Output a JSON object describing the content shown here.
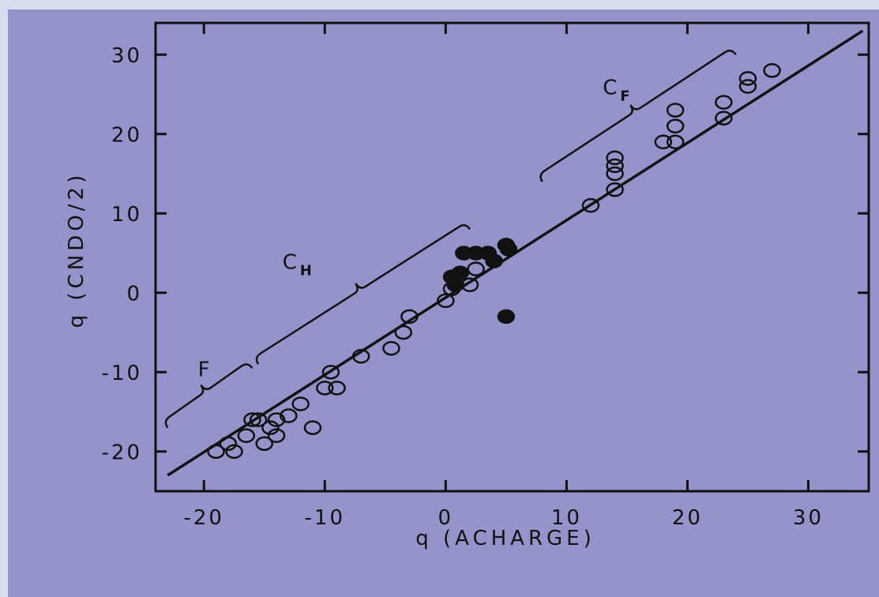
{
  "colors": {
    "background": "#d6def0",
    "panel": "#9494cb",
    "ink": "#111111"
  },
  "chart_data": {
    "type": "scatter",
    "title": "",
    "xlabel": "q (ACHARGE)",
    "ylabel": "q (CNDO/2)",
    "xlim": [
      -24,
      35
    ],
    "ylim": [
      -25,
      34
    ],
    "xticks": [
      -20,
      -10,
      0,
      10,
      20,
      30
    ],
    "xtick_labels": [
      "-20",
      "-10",
      "0",
      "10",
      "20",
      "30"
    ],
    "yticks": [
      -20,
      -10,
      0,
      10,
      20,
      30
    ],
    "ytick_labels": [
      "-20",
      "-10",
      "0",
      "10",
      "20",
      "30"
    ],
    "grid": false,
    "fit_line": {
      "x": [
        -23,
        34.5
      ],
      "y": [
        -23,
        33
      ]
    },
    "series": [
      {
        "marker": "open-circle",
        "points": [
          [
            -19,
            -20
          ],
          [
            -18,
            -19
          ],
          [
            -17.5,
            -20
          ],
          [
            -16.5,
            -18
          ],
          [
            -16,
            -16
          ],
          [
            -15.5,
            -16
          ],
          [
            -15,
            -19
          ],
          [
            -14.5,
            -17
          ],
          [
            -14,
            -18
          ],
          [
            -14,
            -16
          ],
          [
            -13,
            -15.5
          ],
          [
            -12,
            -14
          ],
          [
            -11,
            -17
          ],
          [
            -10,
            -12
          ],
          [
            -9,
            -12
          ],
          [
            -9.5,
            -10
          ],
          [
            -7,
            -8
          ],
          [
            -4.5,
            -7
          ],
          [
            -3.5,
            -5
          ],
          [
            -3,
            -3
          ],
          [
            0,
            -1
          ],
          [
            0.5,
            0.5
          ],
          [
            2,
            1
          ],
          [
            2.5,
            3
          ],
          [
            12,
            11
          ],
          [
            14,
            13
          ],
          [
            14,
            15
          ],
          [
            14,
            16
          ],
          [
            14,
            17
          ],
          [
            18,
            19
          ],
          [
            19,
            19
          ],
          [
            19,
            21
          ],
          [
            19,
            23
          ],
          [
            23,
            22
          ],
          [
            23,
            24
          ],
          [
            25,
            26
          ],
          [
            25,
            27
          ],
          [
            27,
            28
          ]
        ]
      },
      {
        "marker": "filled-circle",
        "points": [
          [
            0.5,
            2
          ],
          [
            0.8,
            1
          ],
          [
            1.2,
            2.5
          ],
          [
            1.5,
            5
          ],
          [
            2.5,
            5
          ],
          [
            3.5,
            5
          ],
          [
            4,
            4
          ],
          [
            5,
            6
          ],
          [
            5.2,
            5.5
          ],
          [
            5,
            -3
          ]
        ]
      }
    ],
    "annotations": [
      {
        "text": "F",
        "sub": "",
        "x": -20.5,
        "y": -10.5,
        "bracket_x": [
          -23,
          -16
        ],
        "bracket_y": [
          -17,
          -9.5
        ]
      },
      {
        "text": "C",
        "sub": "H",
        "x": -13.5,
        "y": 3,
        "bracket_x": [
          -15.5,
          2
        ],
        "bracket_y": [
          -9,
          8
        ]
      },
      {
        "text": "C",
        "sub": "F",
        "x": 13,
        "y": 25,
        "bracket_x": [
          8,
          24
        ],
        "bracket_y": [
          14,
          30
        ]
      }
    ]
  }
}
